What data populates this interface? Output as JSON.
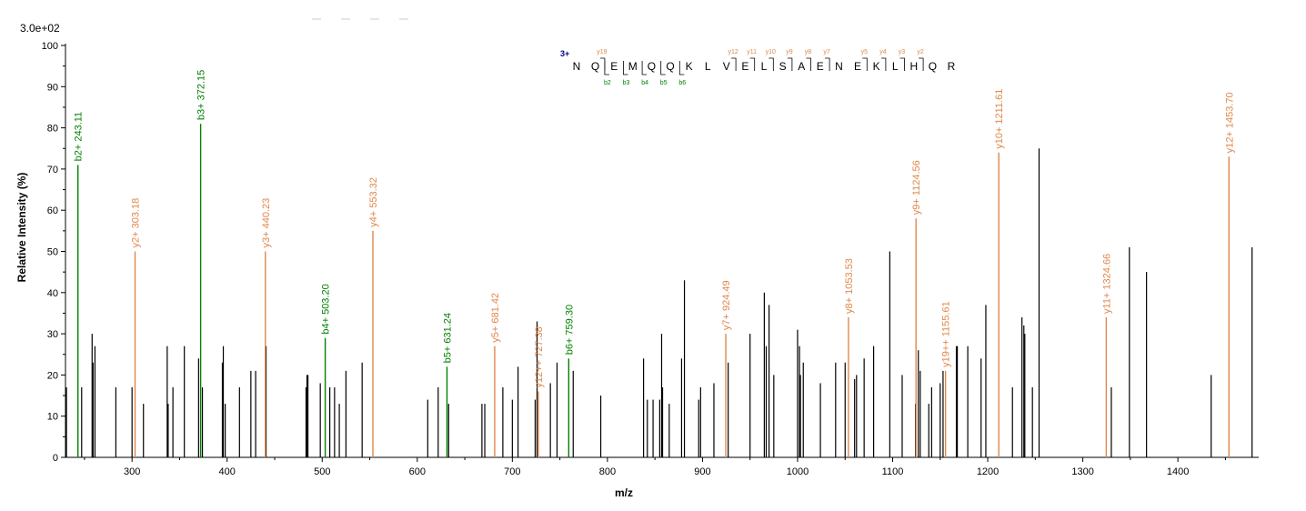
{
  "colors": {
    "b_ion": "#008000",
    "y_ion": "#e0874a",
    "other": "#000000",
    "charge": "#00008b"
  },
  "scale_label": "3.0e+02",
  "chart_data": {
    "type": "bar",
    "xlabel": "m/z",
    "ylabel": "Relative   Intensity (%)",
    "xlim": [
      230,
      1485
    ],
    "ylim": [
      0,
      100
    ],
    "x_ticks": [
      300,
      400,
      500,
      600,
      700,
      800,
      900,
      1000,
      1100,
      1200,
      1300,
      1400
    ],
    "y_ticks": [
      0,
      10,
      20,
      30,
      40,
      50,
      60,
      70,
      80,
      90,
      100
    ],
    "grid": false,
    "annotated_peaks": [
      {
        "ion": "b",
        "label": "b2+ 243.11",
        "mz": 243.11,
        "intensity": 71
      },
      {
        "ion": "y",
        "label": "y2+ 303.18",
        "mz": 303.18,
        "intensity": 50
      },
      {
        "ion": "b",
        "label": "b3+ 372.15",
        "mz": 372.15,
        "intensity": 81
      },
      {
        "ion": "y",
        "label": "y3+ 440.23",
        "mz": 440.23,
        "intensity": 50
      },
      {
        "ion": "b",
        "label": "b4+ 503.20",
        "mz": 503.2,
        "intensity": 29
      },
      {
        "ion": "y",
        "label": "y4+ 553.32",
        "mz": 553.32,
        "intensity": 55
      },
      {
        "ion": "b",
        "label": "b5+ 631.24",
        "mz": 631.24,
        "intensity": 22
      },
      {
        "ion": "y",
        "label": "y5+ 681.42",
        "mz": 681.42,
        "intensity": 27
      },
      {
        "ion": "y",
        "label": "y12++ 727.38",
        "mz": 727.38,
        "intensity": 16
      },
      {
        "ion": "b",
        "label": "b6+ 759.30",
        "mz": 759.3,
        "intensity": 24
      },
      {
        "ion": "y",
        "label": "y7+ 924.49",
        "mz": 924.49,
        "intensity": 30
      },
      {
        "ion": "y",
        "label": "y8+ 1053.53",
        "mz": 1053.53,
        "intensity": 34
      },
      {
        "ion": "y",
        "label": "y9+ 1124.56",
        "mz": 1124.56,
        "intensity": 58
      },
      {
        "ion": "y",
        "label": "y19++ 1155.61",
        "mz": 1155.61,
        "intensity": 21
      },
      {
        "ion": "y",
        "label": "y10+ 1211.61",
        "mz": 1211.61,
        "intensity": 74
      },
      {
        "ion": "y",
        "label": "y11+ 1324.66",
        "mz": 1324.66,
        "intensity": 34
      },
      {
        "ion": "y",
        "label": "y12+ 1453.70",
        "mz": 1453.7,
        "intensity": 73
      }
    ],
    "other_peaks": [
      [
        231,
        17
      ],
      [
        247,
        17
      ],
      [
        258,
        30
      ],
      [
        259,
        23
      ],
      [
        261,
        27
      ],
      [
        283,
        17
      ],
      [
        300,
        17
      ],
      [
        312,
        13
      ],
      [
        337,
        27
      ],
      [
        338,
        13
      ],
      [
        343,
        17
      ],
      [
        355,
        27
      ],
      [
        370,
        24
      ],
      [
        374,
        17
      ],
      [
        395,
        23
      ],
      [
        396,
        27
      ],
      [
        398,
        13
      ],
      [
        413,
        17
      ],
      [
        425,
        21
      ],
      [
        430,
        21
      ],
      [
        441,
        27
      ],
      [
        483,
        17
      ],
      [
        484,
        20
      ],
      [
        485,
        20
      ],
      [
        498,
        18
      ],
      [
        508,
        17
      ],
      [
        513,
        17
      ],
      [
        518,
        13
      ],
      [
        525,
        21
      ],
      [
        542,
        23
      ],
      [
        611,
        14
      ],
      [
        622,
        17
      ],
      [
        633,
        13
      ],
      [
        668,
        13
      ],
      [
        671,
        13
      ],
      [
        690,
        17
      ],
      [
        700,
        14
      ],
      [
        706,
        22
      ],
      [
        724,
        14
      ],
      [
        726,
        33
      ],
      [
        740,
        18
      ],
      [
        747,
        23
      ],
      [
        764,
        21
      ],
      [
        793,
        15
      ],
      [
        838,
        24
      ],
      [
        842,
        14
      ],
      [
        848,
        14
      ],
      [
        855,
        14
      ],
      [
        857,
        30
      ],
      [
        858,
        17
      ],
      [
        865,
        13
      ],
      [
        878,
        24
      ],
      [
        881,
        43
      ],
      [
        896,
        14
      ],
      [
        898,
        17
      ],
      [
        912,
        18
      ],
      [
        927,
        23
      ],
      [
        950,
        30
      ],
      [
        965,
        40
      ],
      [
        967,
        27
      ],
      [
        970,
        37
      ],
      [
        975,
        20
      ],
      [
        1000,
        31
      ],
      [
        1002,
        27
      ],
      [
        1003,
        20
      ],
      [
        1006,
        23
      ],
      [
        1024,
        18
      ],
      [
        1040,
        23
      ],
      [
        1050,
        23
      ],
      [
        1060,
        19
      ],
      [
        1062,
        20
      ],
      [
        1070,
        24
      ],
      [
        1080,
        27
      ],
      [
        1097,
        50
      ],
      [
        1110,
        20
      ],
      [
        1124,
        13
      ],
      [
        1127,
        26
      ],
      [
        1129,
        21
      ],
      [
        1138,
        13
      ],
      [
        1141,
        17
      ],
      [
        1150,
        18
      ],
      [
        1153,
        21
      ],
      [
        1167,
        27
      ],
      [
        1168,
        27
      ],
      [
        1179,
        27
      ],
      [
        1193,
        24
      ],
      [
        1198,
        37
      ],
      [
        1226,
        17
      ],
      [
        1236,
        34
      ],
      [
        1238,
        32
      ],
      [
        1239,
        30
      ],
      [
        1247,
        17
      ],
      [
        1254,
        75
      ],
      [
        1330,
        17
      ],
      [
        1349,
        51
      ],
      [
        1367,
        45
      ],
      [
        1435,
        20
      ],
      [
        1478,
        51
      ]
    ]
  },
  "sequence": {
    "charge_label": "3+",
    "residues": [
      "N",
      "Q",
      "E",
      "M",
      "Q",
      "Q",
      "K",
      "L",
      "V",
      "E",
      "L",
      "S",
      "A",
      "E",
      "N",
      "E",
      "K",
      "L",
      "H",
      "Q",
      "R"
    ],
    "y_markers": [
      {
        "label": "y19",
        "after_index": 1
      },
      {
        "label": "y12",
        "after_index": 8
      },
      {
        "label": "y11",
        "after_index": 9
      },
      {
        "label": "y10",
        "after_index": 10
      },
      {
        "label": "y9",
        "after_index": 11
      },
      {
        "label": "y8",
        "after_index": 12
      },
      {
        "label": "y7",
        "after_index": 13
      },
      {
        "label": "y5",
        "after_index": 15
      },
      {
        "label": "y4",
        "after_index": 16
      },
      {
        "label": "y3",
        "after_index": 17
      },
      {
        "label": "y2",
        "after_index": 18
      }
    ],
    "b_markers": [
      {
        "label": "b2",
        "after_index": 1
      },
      {
        "label": "b3",
        "after_index": 2
      },
      {
        "label": "b4",
        "after_index": 3
      },
      {
        "label": "b5",
        "after_index": 4
      },
      {
        "label": "b6",
        "after_index": 5
      }
    ]
  }
}
